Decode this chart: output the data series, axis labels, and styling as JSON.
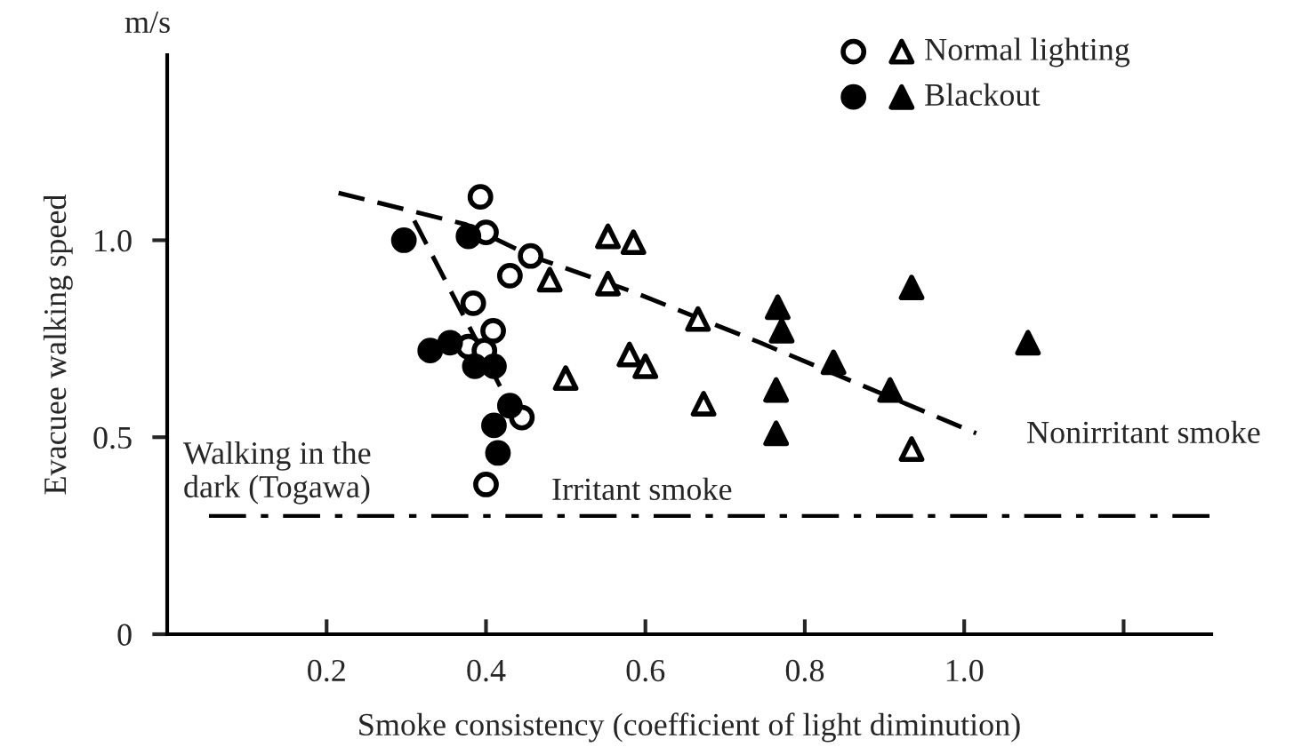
{
  "chart_data": {
    "type": "scatter",
    "xlabel": "Smoke consistency (coefficient of light diminution)",
    "ylabel": "Evacuee walking speed",
    "annotations": [
      "m/s",
      "Irritant smoke",
      "Nonirritant smoke"
    ],
    "xlim": [
      0,
      1.31
    ],
    "ylim": [
      0,
      1.47
    ],
    "xticks": [
      0.2,
      0.4,
      0.6,
      0.8,
      {
        "value": 1.0,
        "label": "1.0"
      },
      {
        "value": 1.2,
        "label": null
      }
    ],
    "yticks": [
      0,
      0.5,
      {
        "value": 1.0,
        "label": "1.0"
      }
    ],
    "grid": false,
    "legend": "top right",
    "series": [
      {
        "marker": "circle",
        "color": "#ffffff",
        "x": [
          0.393,
          0.4,
          0.456,
          0.43,
          0.384,
          0.409,
          0.378,
          0.398,
          0.445,
          0.4
        ],
        "values": [
          1.11,
          1.02,
          0.96,
          0.91,
          0.84,
          0.77,
          0.73,
          0.72,
          0.55,
          0.38
        ]
      },
      {
        "name": "Normal lighting",
        "marker": "triangle",
        "color": "#ffffff",
        "x": [
          0.553,
          0.585,
          0.48,
          0.553,
          0.58,
          0.5,
          0.666,
          0.6,
          0.673,
          0.934
        ],
        "values": [
          1.01,
          0.995,
          0.9,
          0.89,
          0.71,
          0.65,
          0.8,
          0.68,
          0.585,
          0.47
        ]
      },
      {
        "marker": "circle",
        "color": "#000000",
        "x": [
          0.297,
          0.378,
          0.33,
          0.355,
          0.386,
          0.41,
          0.43,
          0.41,
          0.415
        ],
        "values": [
          1.0,
          1.01,
          0.72,
          0.74,
          0.68,
          0.68,
          0.58,
          0.53,
          0.46
        ]
      },
      {
        "name": "Blackout",
        "marker": "triangle",
        "color": "#000000",
        "x": [
          0.766,
          0.771,
          0.836,
          0.907,
          0.764,
          0.764,
          0.934,
          1.08
        ],
        "values": [
          0.83,
          0.77,
          0.69,
          0.62,
          0.62,
          0.51,
          0.88,
          0.74
        ]
      },
      {
        "type": "line",
        "line_style": "dashed",
        "color": "#000000",
        "x": [
          0.215,
          0.375,
          0.456,
          0.583,
          0.744,
          1.015
        ],
        "values": [
          1.12,
          1.04,
          0.96,
          0.87,
          0.74,
          0.51
        ]
      },
      {
        "type": "line",
        "line_style": "dashed",
        "color": "#000000",
        "x": [
          0.31,
          0.42,
          0.43
        ],
        "values": [
          1.05,
          0.62,
          0.58
        ]
      }
    ],
    "ref_lines": [
      {
        "axis": "y",
        "value": 0.3,
        "label": "Walking in the\ndark (Togawa)",
        "color": "#000000",
        "line_style": "dashed"
      }
    ]
  }
}
